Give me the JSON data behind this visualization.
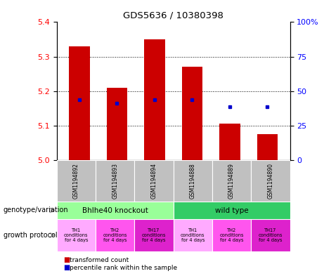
{
  "title": "GDS5636 / 10380398",
  "samples": [
    "GSM1194892",
    "GSM1194893",
    "GSM1194894",
    "GSM1194888",
    "GSM1194889",
    "GSM1194890"
  ],
  "bar_values": [
    5.33,
    5.21,
    5.35,
    5.27,
    5.105,
    5.075
  ],
  "bar_bottom": 5.0,
  "blue_dot_values": [
    5.175,
    5.165,
    5.175,
    5.175,
    5.155,
    5.155
  ],
  "blue_dot_show": [
    true,
    true,
    true,
    true,
    true,
    true
  ],
  "ylim": [
    5.0,
    5.4
  ],
  "yticks_left": [
    5.0,
    5.1,
    5.2,
    5.3,
    5.4
  ],
  "yticks_right": [
    0,
    25,
    50,
    75,
    100
  ],
  "bar_color": "#cc0000",
  "blue_color": "#0000cc",
  "sample_bg_color": "#c0c0c0",
  "genotype_bg_left": "#99ff99",
  "genotype_bg_right": "#33cc66",
  "genotype_labels": [
    "Bhlhe40 knockout",
    "wild type"
  ],
  "protocol_colors": [
    "#ffaaff",
    "#ff55ee",
    "#dd22cc",
    "#ffaaff",
    "#ff55ee",
    "#dd22cc"
  ],
  "protocol_labels": [
    "TH1\nconditions\nfor 4 days",
    "TH2\nconditions\nfor 4 days",
    "TH17\nconditions\nfor 4 days",
    "TH1\nconditions\nfor 4 days",
    "TH2\nconditions\nfor 4 days",
    "TH17\nconditions\nfor 4 days"
  ],
  "left_label_genotype": "genotype/variation",
  "left_label_protocol": "growth protocol",
  "legend_red": "transformed count",
  "legend_blue": "percentile rank within the sample",
  "bar_width": 0.55
}
